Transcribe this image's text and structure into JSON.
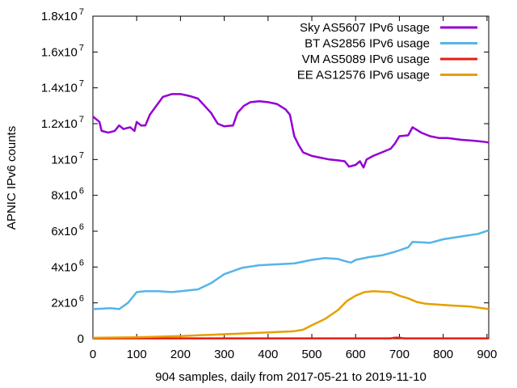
{
  "chart_data": {
    "type": "line",
    "title": "",
    "xlabel": "904 samples, daily from 2017-05-21 to 2019-11-10",
    "ylabel": "APNIC IPv6 counts",
    "xlim": [
      0,
      904
    ],
    "ylim": [
      0,
      18000000
    ],
    "grid": false,
    "legend_position": "top-right",
    "x_ticks": [
      {
        "value": 0,
        "label": "0"
      },
      {
        "value": 100,
        "label": "100"
      },
      {
        "value": 200,
        "label": "200"
      },
      {
        "value": 300,
        "label": "300"
      },
      {
        "value": 400,
        "label": "400"
      },
      {
        "value": 500,
        "label": "500"
      },
      {
        "value": 600,
        "label": "600"
      },
      {
        "value": 700,
        "label": "700"
      },
      {
        "value": 800,
        "label": "800"
      },
      {
        "value": 900,
        "label": "900"
      }
    ],
    "y_ticks": [
      {
        "value": 0,
        "mantissa": "0",
        "exp": ""
      },
      {
        "value": 2000000,
        "mantissa": "2x10",
        "exp": "6"
      },
      {
        "value": 4000000,
        "mantissa": "4x10",
        "exp": "6"
      },
      {
        "value": 6000000,
        "mantissa": "6x10",
        "exp": "6"
      },
      {
        "value": 8000000,
        "mantissa": "8x10",
        "exp": "6"
      },
      {
        "value": 10000000,
        "mantissa": "1x10",
        "exp": "7"
      },
      {
        "value": 12000000,
        "mantissa": "1.2x10",
        "exp": "7"
      },
      {
        "value": 14000000,
        "mantissa": "1.4x10",
        "exp": "7"
      },
      {
        "value": 16000000,
        "mantissa": "1.6x10",
        "exp": "7"
      },
      {
        "value": 18000000,
        "mantissa": "1.8x10",
        "exp": "7"
      }
    ],
    "series": [
      {
        "name": "Sky AS5607 IPv6 usage",
        "color": "#9400d3",
        "points": [
          [
            0,
            12400000
          ],
          [
            15,
            12100000
          ],
          [
            20,
            11600000
          ],
          [
            35,
            11500000
          ],
          [
            50,
            11600000
          ],
          [
            60,
            11900000
          ],
          [
            70,
            11700000
          ],
          [
            85,
            11800000
          ],
          [
            95,
            11600000
          ],
          [
            100,
            12100000
          ],
          [
            110,
            11900000
          ],
          [
            120,
            11900000
          ],
          [
            130,
            12500000
          ],
          [
            145,
            13000000
          ],
          [
            160,
            13500000
          ],
          [
            180,
            13650000
          ],
          [
            200,
            13650000
          ],
          [
            220,
            13550000
          ],
          [
            240,
            13400000
          ],
          [
            255,
            13000000
          ],
          [
            270,
            12600000
          ],
          [
            285,
            12000000
          ],
          [
            300,
            11850000
          ],
          [
            320,
            11900000
          ],
          [
            330,
            12600000
          ],
          [
            345,
            13000000
          ],
          [
            360,
            13200000
          ],
          [
            380,
            13250000
          ],
          [
            400,
            13200000
          ],
          [
            420,
            13100000
          ],
          [
            440,
            12800000
          ],
          [
            450,
            12500000
          ],
          [
            460,
            11300000
          ],
          [
            470,
            10800000
          ],
          [
            480,
            10400000
          ],
          [
            500,
            10200000
          ],
          [
            520,
            10100000
          ],
          [
            540,
            10000000
          ],
          [
            560,
            9950000
          ],
          [
            575,
            9900000
          ],
          [
            585,
            9600000
          ],
          [
            600,
            9700000
          ],
          [
            610,
            9900000
          ],
          [
            618,
            9550000
          ],
          [
            625,
            10000000
          ],
          [
            640,
            10200000
          ],
          [
            660,
            10400000
          ],
          [
            680,
            10600000
          ],
          [
            690,
            10900000
          ],
          [
            700,
            11300000
          ],
          [
            720,
            11350000
          ],
          [
            730,
            11800000
          ],
          [
            750,
            11500000
          ],
          [
            770,
            11300000
          ],
          [
            790,
            11200000
          ],
          [
            810,
            11200000
          ],
          [
            840,
            11100000
          ],
          [
            870,
            11050000
          ],
          [
            890,
            11000000
          ],
          [
            904,
            10950000
          ]
        ]
      },
      {
        "name": "BT AS2856 IPv6 usage",
        "color": "#56b4e9",
        "points": [
          [
            0,
            1650000
          ],
          [
            40,
            1700000
          ],
          [
            60,
            1650000
          ],
          [
            80,
            2000000
          ],
          [
            100,
            2600000
          ],
          [
            120,
            2650000
          ],
          [
            150,
            2650000
          ],
          [
            180,
            2600000
          ],
          [
            200,
            2650000
          ],
          [
            240,
            2750000
          ],
          [
            270,
            3100000
          ],
          [
            300,
            3600000
          ],
          [
            340,
            3950000
          ],
          [
            380,
            4100000
          ],
          [
            420,
            4150000
          ],
          [
            460,
            4200000
          ],
          [
            500,
            4400000
          ],
          [
            530,
            4500000
          ],
          [
            560,
            4450000
          ],
          [
            580,
            4300000
          ],
          [
            590,
            4250000
          ],
          [
            600,
            4400000
          ],
          [
            630,
            4550000
          ],
          [
            660,
            4650000
          ],
          [
            690,
            4850000
          ],
          [
            720,
            5100000
          ],
          [
            730,
            5400000
          ],
          [
            770,
            5350000
          ],
          [
            800,
            5550000
          ],
          [
            840,
            5700000
          ],
          [
            880,
            5850000
          ],
          [
            904,
            6050000
          ]
        ]
      },
      {
        "name": "VM AS5089 IPv6 usage",
        "color": "#e51e10",
        "points": [
          [
            0,
            20000
          ],
          [
            300,
            20000
          ],
          [
            600,
            20000
          ],
          [
            680,
            20000
          ],
          [
            690,
            60000
          ],
          [
            700,
            60000
          ],
          [
            710,
            20000
          ],
          [
            904,
            20000
          ]
        ]
      },
      {
        "name": "EE AS12576 IPv6 usage",
        "color": "#e69f00",
        "points": [
          [
            0,
            50000
          ],
          [
            100,
            80000
          ],
          [
            200,
            150000
          ],
          [
            300,
            250000
          ],
          [
            400,
            350000
          ],
          [
            460,
            420000
          ],
          [
            480,
            500000
          ],
          [
            500,
            750000
          ],
          [
            530,
            1100000
          ],
          [
            560,
            1600000
          ],
          [
            580,
            2100000
          ],
          [
            600,
            2400000
          ],
          [
            620,
            2600000
          ],
          [
            640,
            2650000
          ],
          [
            680,
            2600000
          ],
          [
            700,
            2400000
          ],
          [
            720,
            2250000
          ],
          [
            740,
            2050000
          ],
          [
            760,
            1950000
          ],
          [
            790,
            1900000
          ],
          [
            820,
            1850000
          ],
          [
            860,
            1800000
          ],
          [
            904,
            1650000
          ]
        ]
      }
    ]
  }
}
